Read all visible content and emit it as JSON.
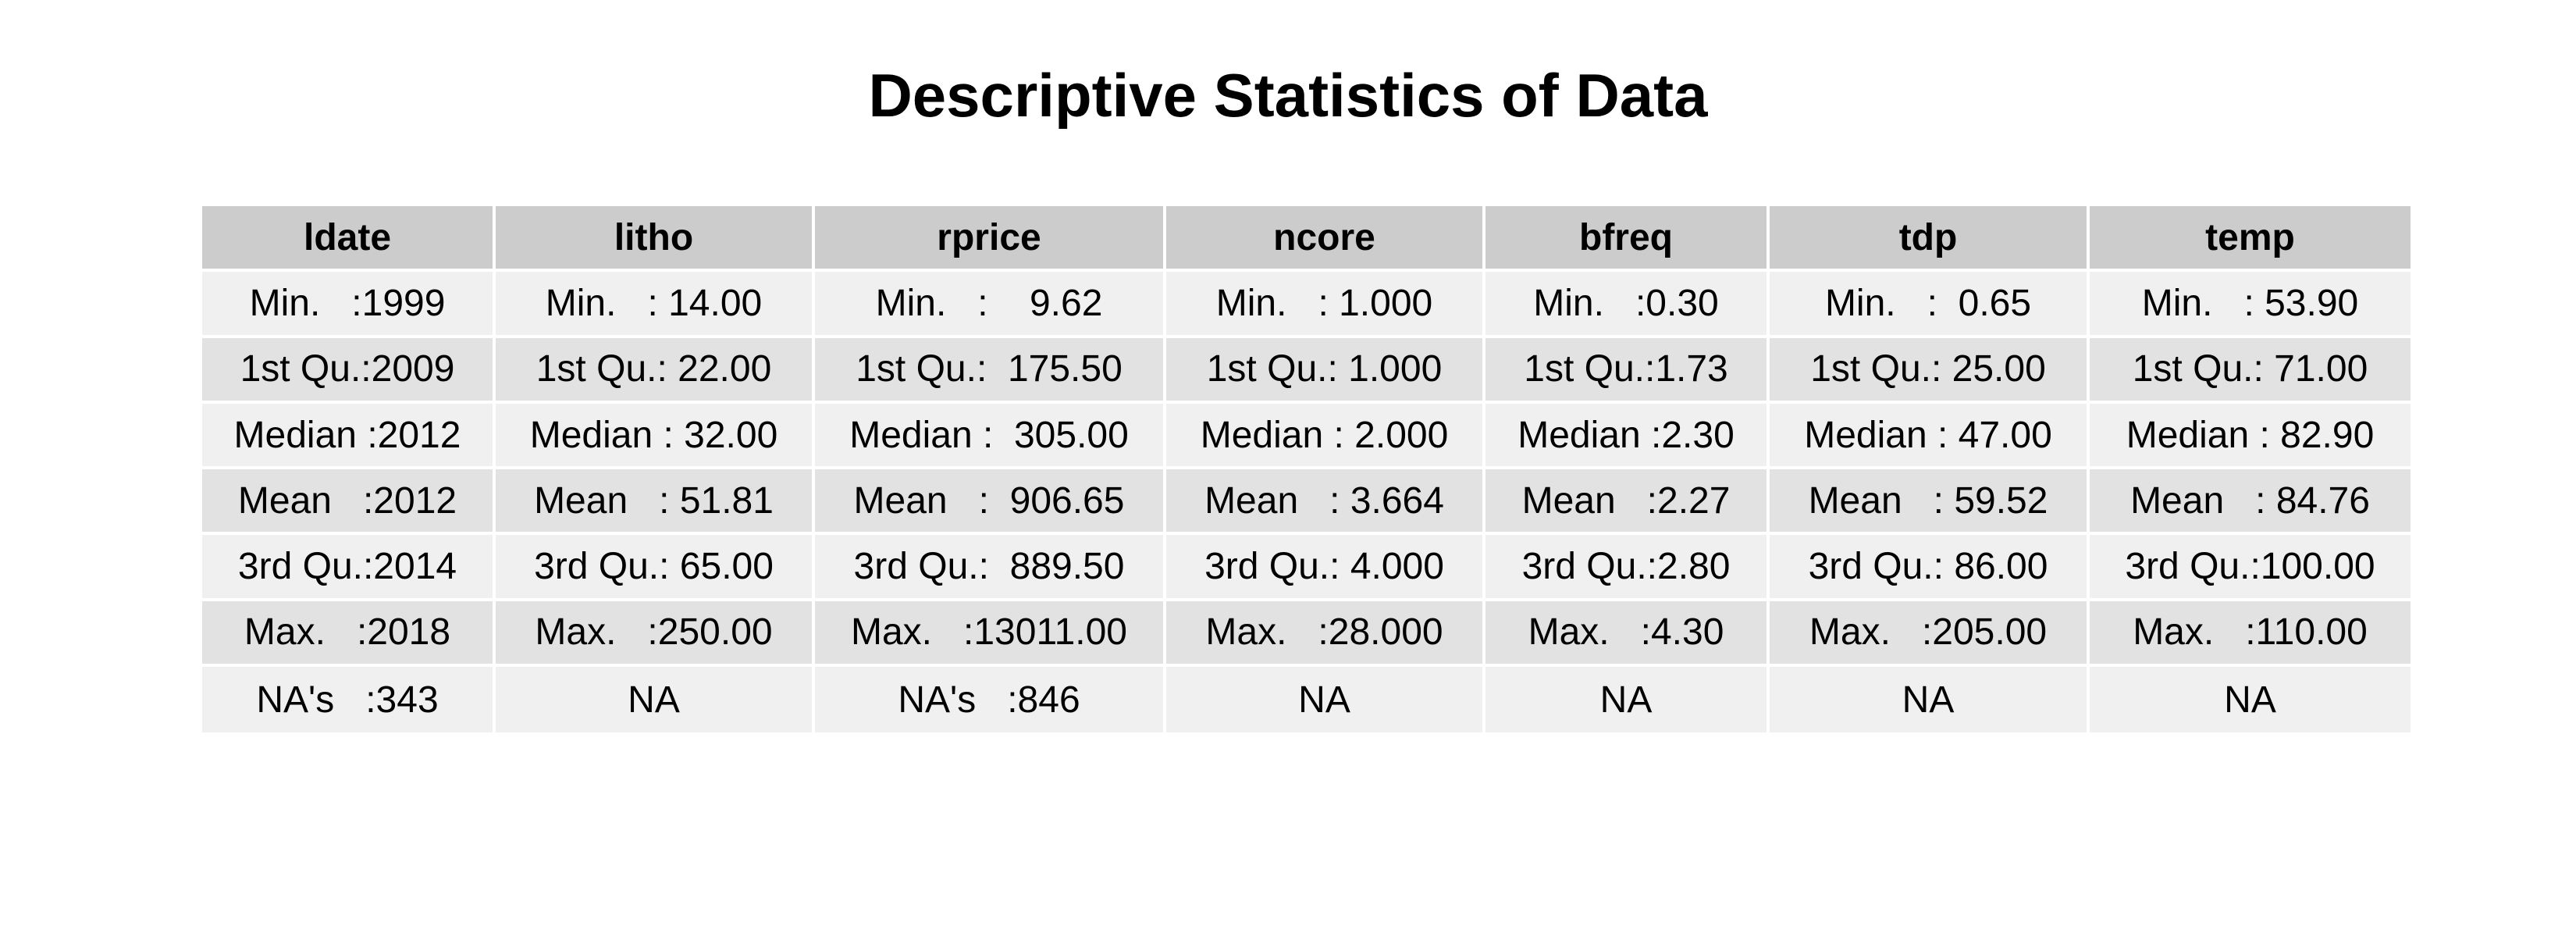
{
  "chart_data": {
    "type": "table",
    "title": "Descriptive Statistics of Data",
    "columns": [
      "ldate",
      "litho",
      "rprice",
      "ncore",
      "bfreq",
      "tdp",
      "temp"
    ],
    "rows": [
      [
        "Min.   :1999",
        "Min.   : 14.00",
        "Min.   :    9.62",
        "Min.   : 1.000",
        "Min.   :0.30",
        "Min.   :  0.65",
        "Min.   : 53.90"
      ],
      [
        "1st Qu.:2009",
        "1st Qu.: 22.00",
        "1st Qu.:  175.50",
        "1st Qu.: 1.000",
        "1st Qu.:1.73",
        "1st Qu.: 25.00",
        "1st Qu.: 71.00"
      ],
      [
        "Median :2012",
        "Median : 32.00",
        "Median :  305.00",
        "Median : 2.000",
        "Median :2.30",
        "Median : 47.00",
        "Median : 82.90"
      ],
      [
        "Mean   :2012",
        "Mean   : 51.81",
        "Mean   :  906.65",
        "Mean   : 3.664",
        "Mean   :2.27",
        "Mean   : 59.52",
        "Mean   : 84.76"
      ],
      [
        "3rd Qu.:2014",
        "3rd Qu.: 65.00",
        "3rd Qu.:  889.50",
        "3rd Qu.: 4.000",
        "3rd Qu.:2.80",
        "3rd Qu.: 86.00",
        "3rd Qu.:100.00"
      ],
      [
        "Max.   :2018",
        "Max.   :250.00",
        "Max.   :13011.00",
        "Max.   :28.000",
        "Max.   :4.30",
        "Max.   :205.00",
        "Max.   :110.00"
      ],
      [
        "NA's   :343",
        "NA",
        "NA's   :846",
        "NA",
        "NA",
        "NA",
        "NA"
      ]
    ],
    "colors": {
      "header_bg": "#cccccc",
      "row_light": "#f0f0f0",
      "row_dark": "#e2e2e2",
      "border": "#ffffff",
      "text": "#000000"
    }
  }
}
